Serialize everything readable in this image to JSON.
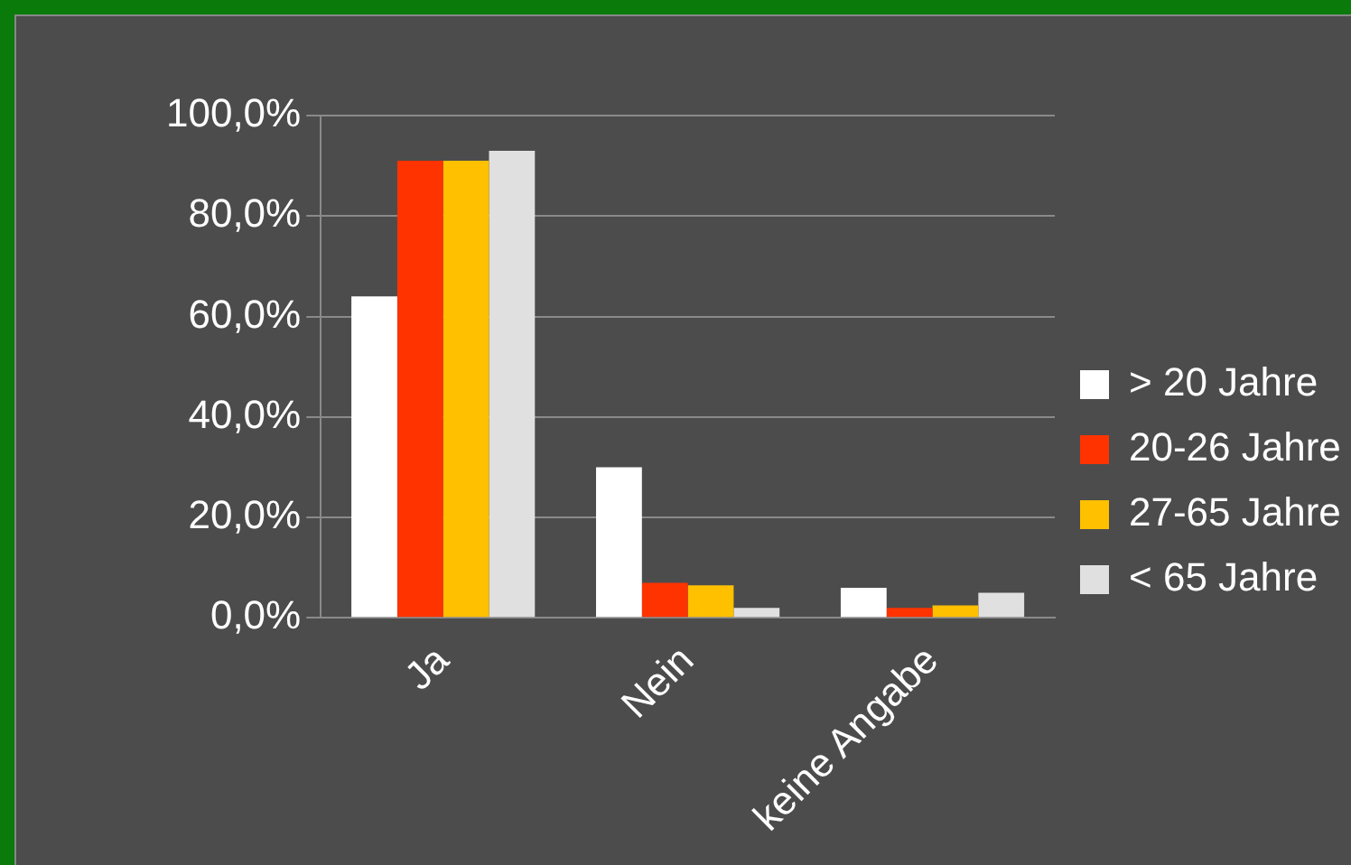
{
  "chart_data": {
    "type": "bar",
    "categories": [
      "Ja",
      "Nein",
      "keine Angabe"
    ],
    "series": [
      {
        "name": "> 20 Jahre",
        "color": "#ffffff",
        "values": [
          64,
          30,
          6
        ]
      },
      {
        "name": "20-26 Jahre",
        "color": "#ff3300",
        "values": [
          91,
          7,
          2
        ]
      },
      {
        "name": "27-65 Jahre",
        "color": "#ffc000",
        "values": [
          91,
          6.5,
          2.5
        ]
      },
      {
        "name": "< 65 Jahre",
        "color": "#e0e0e0",
        "values": [
          93,
          2,
          5
        ]
      }
    ],
    "ylim": [
      0,
      100
    ],
    "yticks": [
      {
        "value": 0,
        "label": "0,0%"
      },
      {
        "value": 20,
        "label": "20,0%"
      },
      {
        "value": 40,
        "label": "40,0%"
      },
      {
        "value": 60,
        "label": "60,0%"
      },
      {
        "value": 80,
        "label": "80,0%"
      },
      {
        "value": 100,
        "label": "100,0%"
      }
    ],
    "grid": "y",
    "legend": "right"
  }
}
